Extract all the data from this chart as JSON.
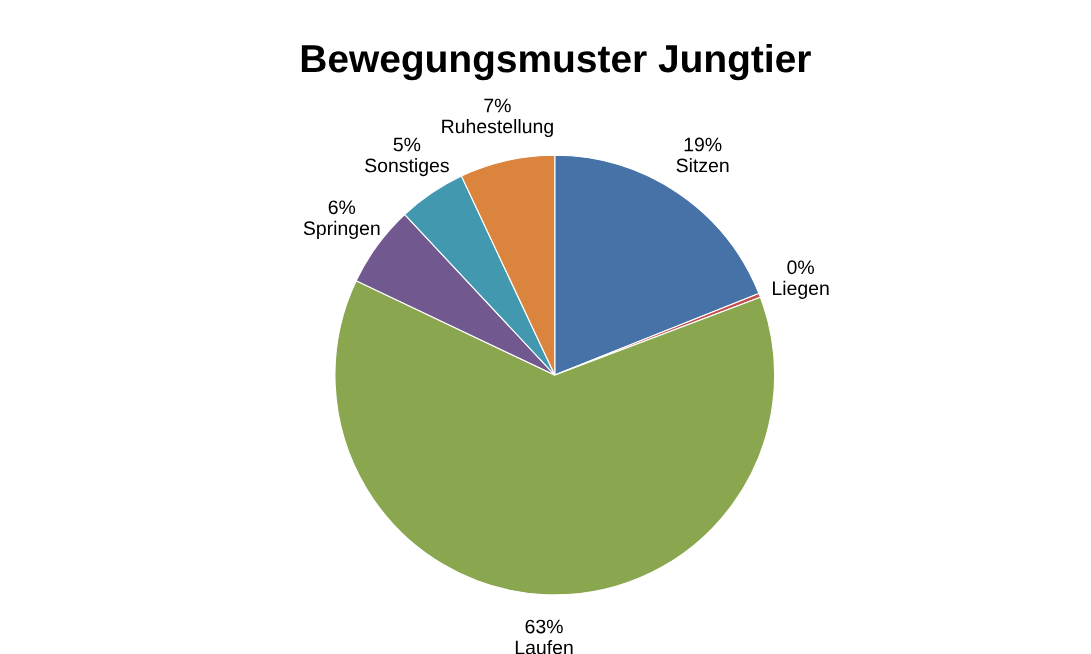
{
  "chart_data": {
    "type": "pie",
    "title": "Bewegungsmuster Jungtier",
    "categories": [
      "Sitzen",
      "Liegen",
      "Laufen",
      "Springen",
      "Sonstiges",
      "Ruhestellung"
    ],
    "values": [
      19,
      0.3,
      63,
      6,
      5,
      7
    ],
    "value_labels": [
      "19%",
      "0%",
      "63%",
      "6%",
      "5%",
      "7%"
    ],
    "colors": [
      "#4672a8",
      "#c0504d",
      "#8aa64f",
      "#71588f",
      "#4198af",
      "#db843d"
    ],
    "legend": false
  }
}
